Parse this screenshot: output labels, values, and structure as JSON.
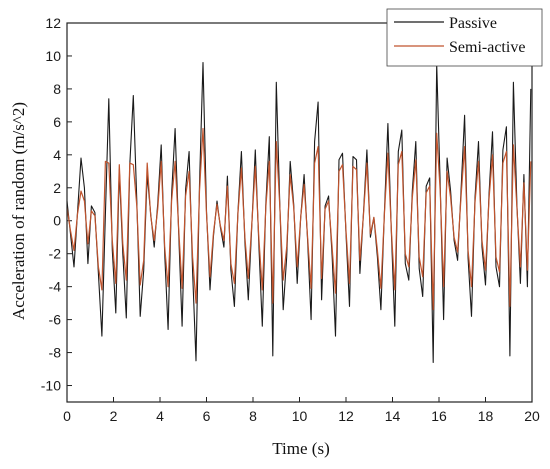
{
  "chart_data": {
    "type": "line",
    "xlabel": "Time (s)",
    "ylabel": "Acceleration of random (m/s^2)",
    "xlim": [
      0,
      20
    ],
    "ylim": [
      -11,
      12
    ],
    "xticks": [
      0,
      2,
      4,
      6,
      8,
      10,
      12,
      14,
      16,
      18,
      20
    ],
    "yticks": [
      -10,
      -8,
      -6,
      -4,
      -2,
      0,
      2,
      4,
      6,
      8,
      10,
      12
    ],
    "legend": {
      "placement": "top-right"
    },
    "series": [
      {
        "name": "Passive",
        "color": "#1a1a1a",
        "x": [
          0,
          0.15,
          0.3,
          0.45,
          0.6,
          0.75,
          0.9,
          1.05,
          1.2,
          1.35,
          1.5,
          1.65,
          1.8,
          1.95,
          2.1,
          2.25,
          2.4,
          2.55,
          2.7,
          2.85,
          3.0,
          3.15,
          3.3,
          3.45,
          3.6,
          3.75,
          3.9,
          4.05,
          4.2,
          4.35,
          4.5,
          4.65,
          4.8,
          4.95,
          5.1,
          5.25,
          5.4,
          5.55,
          5.7,
          5.85,
          6.0,
          6.15,
          6.3,
          6.45,
          6.6,
          6.75,
          6.9,
          7.05,
          7.2,
          7.35,
          7.5,
          7.65,
          7.8,
          7.95,
          8.1,
          8.25,
          8.4,
          8.55,
          8.7,
          8.85,
          9.0,
          9.15,
          9.3,
          9.45,
          9.6,
          9.75,
          9.9,
          10.05,
          10.2,
          10.35,
          10.5,
          10.65,
          10.8,
          10.95,
          11.1,
          11.25,
          11.4,
          11.55,
          11.7,
          11.85,
          12.0,
          12.15,
          12.3,
          12.45,
          12.6,
          12.75,
          12.9,
          13.05,
          13.2,
          13.35,
          13.5,
          13.65,
          13.8,
          13.95,
          14.1,
          14.25,
          14.4,
          14.55,
          14.7,
          14.85,
          15.0,
          15.15,
          15.3,
          15.45,
          15.6,
          15.75,
          15.9,
          16.05,
          16.2,
          16.35,
          16.5,
          16.65,
          16.8,
          16.95,
          17.1,
          17.25,
          17.4,
          17.55,
          17.7,
          17.85,
          18.0,
          18.15,
          18.3,
          18.45,
          18.6,
          18.75,
          18.9,
          19.05,
          19.2,
          19.35,
          19.5,
          19.65,
          19.8,
          19.95
        ],
        "values": [
          1.2,
          -0.8,
          -2.8,
          0.5,
          3.8,
          2.0,
          -2.6,
          0.9,
          0.5,
          -3.2,
          -7.0,
          0.4,
          7.4,
          -1.8,
          -5.6,
          3.1,
          -2.0,
          -5.9,
          3.4,
          7.6,
          1.2,
          -5.8,
          -3.0,
          2.8,
          0.4,
          -1.6,
          1.0,
          4.6,
          -2.0,
          -6.6,
          1.6,
          5.6,
          -0.6,
          -6.4,
          1.9,
          4.2,
          -3.1,
          -8.5,
          2.2,
          9.6,
          0.6,
          -4.2,
          -0.9,
          1.2,
          -0.4,
          -1.6,
          2.7,
          -3.0,
          -5.2,
          0.5,
          4.2,
          -1.3,
          -4.8,
          -0.3,
          4.3,
          -1.4,
          -6.4,
          1.0,
          5.1,
          -8.2,
          8.4,
          1.2,
          -5.4,
          -2.2,
          3.6,
          1.0,
          -3.8,
          0.2,
          2.8,
          -1.2,
          -6.0,
          4.8,
          7.2,
          -4.8,
          0.9,
          1.5,
          -2.1,
          -7.0,
          3.7,
          4.1,
          -0.8,
          -5.2,
          3.9,
          3.7,
          -3.2,
          0.4,
          4.3,
          -1.0,
          0.2,
          -2.2,
          -5.4,
          0.5,
          5.9,
          -0.6,
          -6.4,
          4.2,
          5.5,
          -2.6,
          -3.6,
          1.8,
          4.8,
          -2.9,
          -4.6,
          2.1,
          2.6,
          -8.6,
          9.5,
          2.2,
          -6.0,
          3.8,
          1.8,
          -1.2,
          -2.4,
          1.9,
          6.4,
          -2.3,
          -5.8,
          1.4,
          4.8,
          -1.6,
          -3.9,
          1.6,
          5.4,
          -2.8,
          -4.0,
          4.3,
          5.7,
          -8.2,
          8.4,
          1.0,
          -3.8,
          2.8,
          -4.0,
          8.0
        ]
      },
      {
        "name": "Semi-active",
        "color": "#c0542e",
        "x": [
          0,
          0.15,
          0.3,
          0.45,
          0.6,
          0.75,
          0.9,
          1.05,
          1.2,
          1.35,
          1.5,
          1.65,
          1.8,
          1.95,
          2.1,
          2.25,
          2.4,
          2.55,
          2.7,
          2.85,
          3.0,
          3.15,
          3.3,
          3.45,
          3.6,
          3.75,
          3.9,
          4.05,
          4.2,
          4.35,
          4.5,
          4.65,
          4.8,
          4.95,
          5.1,
          5.25,
          5.4,
          5.55,
          5.7,
          5.85,
          6.0,
          6.15,
          6.3,
          6.45,
          6.6,
          6.75,
          6.9,
          7.05,
          7.2,
          7.35,
          7.5,
          7.65,
          7.8,
          7.95,
          8.1,
          8.25,
          8.4,
          8.55,
          8.7,
          8.85,
          9.0,
          9.15,
          9.3,
          9.45,
          9.6,
          9.75,
          9.9,
          10.05,
          10.2,
          10.35,
          10.5,
          10.65,
          10.8,
          10.95,
          11.1,
          11.25,
          11.4,
          11.55,
          11.7,
          11.85,
          12.0,
          12.15,
          12.3,
          12.45,
          12.6,
          12.75,
          12.9,
          13.05,
          13.2,
          13.35,
          13.5,
          13.65,
          13.8,
          13.95,
          14.1,
          14.25,
          14.4,
          14.55,
          14.7,
          14.85,
          15.0,
          15.15,
          15.3,
          15.45,
          15.6,
          15.75,
          15.9,
          16.05,
          16.2,
          16.35,
          16.5,
          16.65,
          16.8,
          16.95,
          17.1,
          17.25,
          17.4,
          17.55,
          17.7,
          17.85,
          18.0,
          18.15,
          18.3,
          18.45,
          18.6,
          18.75,
          18.9,
          19.05,
          19.2,
          19.35,
          19.5,
          19.65,
          19.8,
          19.95
        ],
        "values": [
          0.8,
          -0.6,
          -1.8,
          0.4,
          1.8,
          1.2,
          -1.4,
          0.6,
          0.3,
          -2.8,
          -4.2,
          3.6,
          3.5,
          -1.2,
          -3.8,
          3.4,
          -1.4,
          -3.6,
          3.5,
          3.4,
          0.9,
          -3.9,
          -2.4,
          3.5,
          0.3,
          -1.2,
          0.7,
          3.6,
          -1.6,
          -4.0,
          1.2,
          3.6,
          -0.4,
          -4.1,
          1.5,
          3.0,
          -2.2,
          -5.0,
          1.8,
          5.6,
          0.4,
          -3.4,
          -0.7,
          1.0,
          -0.3,
          -1.2,
          2.1,
          -2.6,
          -3.8,
          0.4,
          3.2,
          -1.0,
          -3.5,
          -0.2,
          3.3,
          -1.0,
          -4.2,
          0.8,
          3.6,
          -5.0,
          4.8,
          1.0,
          -3.6,
          -1.6,
          2.8,
          0.8,
          -2.8,
          0.2,
          2.2,
          -1.0,
          -4.1,
          3.5,
          4.5,
          -3.5,
          0.7,
          1.2,
          -1.6,
          -4.4,
          3.0,
          3.4,
          -0.6,
          -3.8,
          3.3,
          3.1,
          -2.4,
          0.3,
          3.5,
          -0.8,
          0.2,
          -1.8,
          -4.1,
          0.4,
          4.1,
          -0.5,
          -4.2,
          3.4,
          4.2,
          -2.0,
          -2.8,
          1.4,
          3.7,
          -2.2,
          -3.4,
          1.7,
          2.1,
          -5.4,
          5.3,
          1.8,
          -4.0,
          3.0,
          1.4,
          -1.0,
          -1.9,
          1.5,
          4.5,
          -1.8,
          -4.0,
          1.1,
          3.6,
          -1.2,
          -3.0,
          1.3,
          4.0,
          -2.2,
          -3.1,
          3.5,
          4.2,
          -5.2,
          4.6,
          0.8,
          -2.8,
          2.3,
          -3.0,
          3.6
        ]
      }
    ]
  }
}
